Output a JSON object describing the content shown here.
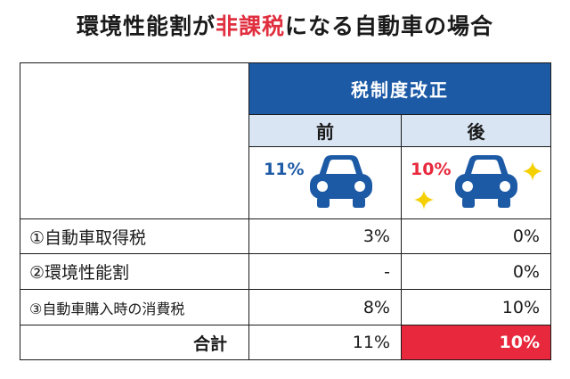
{
  "title": {
    "pre": "環境性能割が",
    "highlight": "非課税",
    "post": "になる自動車の場合"
  },
  "header": {
    "reform": "税制度改正",
    "before": "前",
    "after": "後"
  },
  "icons": {
    "before_rate": "11%",
    "after_rate": "10%",
    "before_icon": "car-icon",
    "after_icon": "car-icon-sparkle"
  },
  "rows": [
    {
      "label": "①自動車取得税",
      "before": "3%",
      "after": "0%"
    },
    {
      "label": "②環境性能割",
      "before": "-",
      "after": "0%"
    },
    {
      "label": "③自動車購入時の消費税",
      "before": "8%",
      "after": "10%"
    }
  ],
  "total": {
    "label": "合計",
    "before": "11%",
    "after": "10%"
  },
  "colors": {
    "header_blue": "#1d5aa6",
    "light_blue": "#d9e5f3",
    "accent_red": "#e8283c",
    "sparkle": "#f5d000",
    "rate_blue": "#1d5aa6"
  }
}
